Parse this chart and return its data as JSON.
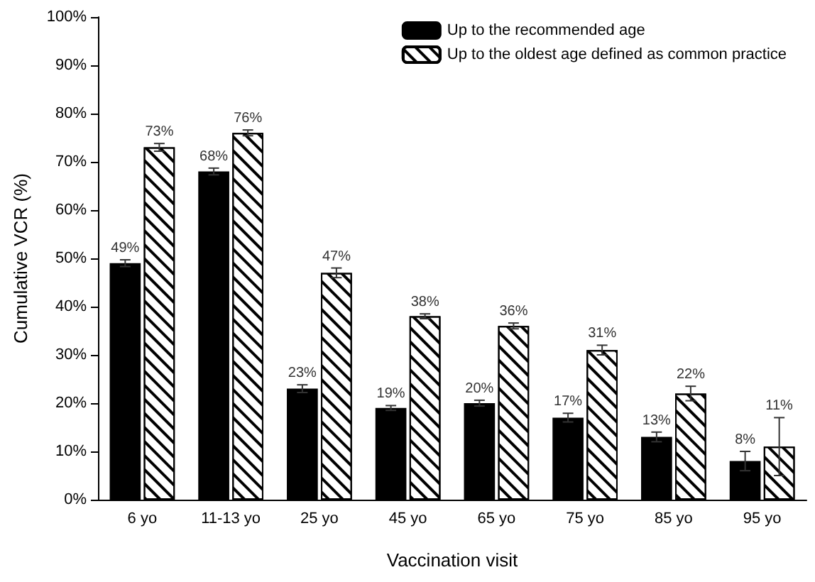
{
  "chart_data": {
    "type": "bar",
    "xlabel": "Vaccination visit",
    "ylabel": "Cumulative VCR (%)",
    "categories": [
      "6 yo",
      "11-13 yo",
      "25 yo",
      "45 yo",
      "65 yo",
      "75 yo",
      "85 yo",
      "95 yo"
    ],
    "series": [
      {
        "name": "Up to the recommended age",
        "color": "#000000",
        "values": [
          49,
          68,
          23,
          19,
          20,
          17,
          13,
          8
        ],
        "value_labels": [
          "49%",
          "68%",
          "23%",
          "19%",
          "20%",
          "17%",
          "13%",
          "8%"
        ],
        "errors": [
          0.7,
          0.7,
          0.8,
          0.5,
          0.6,
          0.9,
          1,
          2
        ]
      },
      {
        "name": "Up to the oldest age defined as common practice",
        "color": "#ffffff",
        "values": [
          73,
          76,
          47,
          38,
          36,
          31,
          22,
          11
        ],
        "value_labels": [
          "73%",
          "76%",
          "47%",
          "38%",
          "36%",
          "31%",
          "22%",
          "11%"
        ],
        "errors": [
          0.8,
          0.6,
          1,
          0.5,
          0.6,
          1,
          1.5,
          6
        ]
      }
    ],
    "ylim": [
      0,
      100
    ],
    "yticks": [
      {
        "value": 0,
        "label": "0%"
      },
      {
        "value": 10,
        "label": "10%"
      },
      {
        "value": 20,
        "label": "20%"
      },
      {
        "value": 30,
        "label": "30%"
      },
      {
        "value": 40,
        "label": "40%"
      },
      {
        "value": 50,
        "label": "50%"
      },
      {
        "value": 60,
        "label": "60%"
      },
      {
        "value": 70,
        "label": "70%"
      },
      {
        "value": 80,
        "label": "80%"
      },
      {
        "value": 90,
        "label": "90%"
      },
      {
        "value": 100,
        "label": "100%"
      }
    ],
    "grid": false,
    "legend": "top right"
  }
}
